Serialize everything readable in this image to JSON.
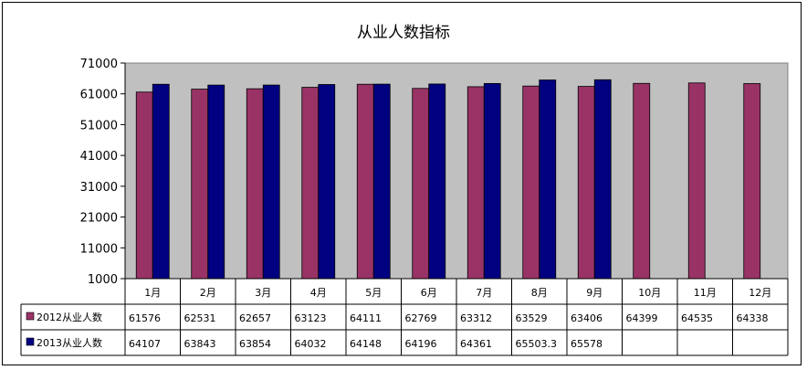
{
  "chart_data": {
    "type": "bar",
    "title": "从业人数指标",
    "categories": [
      "1月",
      "2月",
      "3月",
      "4月",
      "5月",
      "6月",
      "7月",
      "8月",
      "9月",
      "10月",
      "11月",
      "12月"
    ],
    "y_ticks": [
      "71000",
      "61000",
      "51000",
      "41000",
      "31000",
      "21000",
      "11000",
      "1000"
    ],
    "ylim": [
      1000,
      71000
    ],
    "grid": false,
    "plot_background": "#c0c0c0",
    "legend_placement": "data-table",
    "series": [
      {
        "name": "2012从业人数",
        "color": "#993366",
        "values": [
          61576,
          62531,
          62657,
          63123,
          64111,
          62769,
          63312,
          63529,
          63406,
          64399,
          64535,
          64338
        ],
        "labels": [
          "61576",
          "62531",
          "62657",
          "63123",
          "64111",
          "62769",
          "63312",
          "63529",
          "63406",
          "64399",
          "64535",
          "64338"
        ]
      },
      {
        "name": "2013从业人数",
        "color": "#000080",
        "values": [
          64107,
          63843,
          63854,
          64032,
          64148,
          64196,
          64361,
          65503.3,
          65578,
          null,
          null,
          null
        ],
        "labels": [
          "64107",
          "63843",
          "63854",
          "64032",
          "64148",
          "64196",
          "64361",
          "65503.3",
          "65578",
          "",
          "",
          ""
        ]
      }
    ]
  }
}
